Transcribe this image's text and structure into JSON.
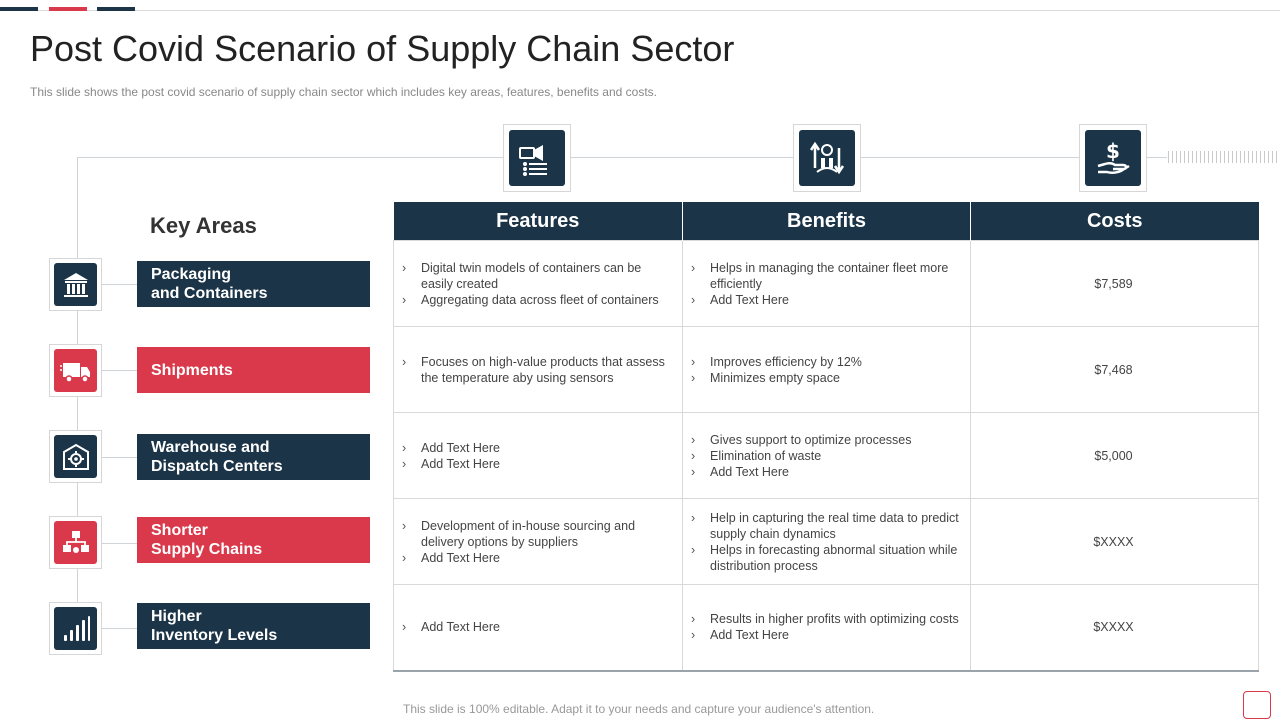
{
  "slide": {
    "title": "Post Covid Scenario of Supply Chain Sector",
    "subtitle": "This slide shows the post covid scenario of supply chain sector which includes key areas, features, benefits and costs.",
    "footer": "This slide is 100% editable. Adapt it to your needs and capture your audience's attention."
  },
  "colors": {
    "dark": "#1b3447",
    "accent": "#d9394b"
  },
  "key_areas": {
    "title": "Key Areas",
    "items": [
      {
        "label": "Packaging\nand Containers",
        "icon": "warehouse-building-icon",
        "color": "dark"
      },
      {
        "label": "Shipments",
        "icon": "delivery-truck-icon",
        "color": "red"
      },
      {
        "label": "Warehouse and\nDispatch Centers",
        "icon": "warehouse-gear-icon",
        "color": "dark"
      },
      {
        "label": "Shorter\nSupply Chains",
        "icon": "supply-network-icon",
        "color": "red"
      },
      {
        "label": "Higher\nInventory Levels",
        "icon": "bar-levels-icon",
        "color": "dark"
      }
    ]
  },
  "table": {
    "header_icons": [
      "presentation-checklist-icon",
      "money-exchange-icon",
      "dollar-hand-icon"
    ],
    "headers": [
      "Features",
      "Benefits",
      "Costs"
    ],
    "rows": [
      {
        "features": [
          "Digital twin models of containers can be easily created",
          "Aggregating data across fleet of containers"
        ],
        "benefits": [
          "Helps in managing the container fleet more efficiently",
          "Add Text Here"
        ],
        "cost": "$7,589"
      },
      {
        "features": [
          "Focuses on high-value products that assess the temperature aby using sensors"
        ],
        "benefits": [
          "Improves efficiency by 12%",
          "Minimizes empty space"
        ],
        "cost": "$7,468"
      },
      {
        "features": [
          "Add Text Here",
          "Add Text Here"
        ],
        "benefits": [
          "Gives support to optimize processes",
          "Elimination of waste",
          "Add Text Here"
        ],
        "cost": "$5,000"
      },
      {
        "features": [
          "Development of in-house sourcing and delivery options by suppliers",
          "Add Text Here"
        ],
        "benefits": [
          "Help in capturing the real time data to predict supply chain dynamics",
          "Helps in forecasting abnormal situation while distribution process"
        ],
        "cost": "$XXXX"
      },
      {
        "features": [
          "Add Text Here"
        ],
        "benefits": [
          "Results in higher profits with optimizing costs",
          "Add Text Here"
        ],
        "cost": "$XXXX"
      }
    ]
  }
}
